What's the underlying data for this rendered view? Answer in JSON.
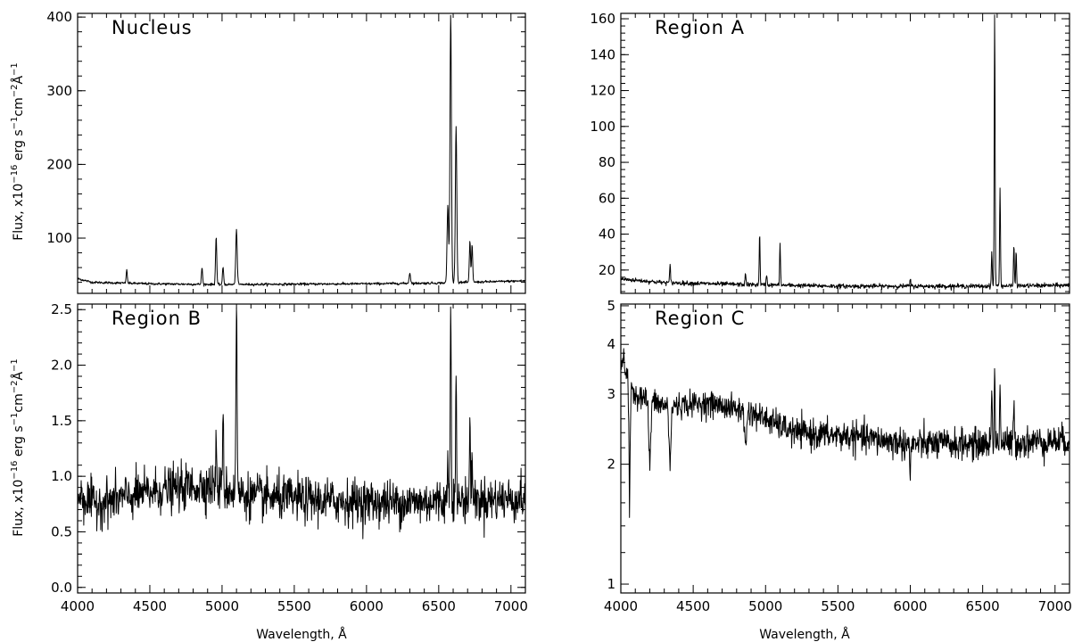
{
  "chart_data": [
    {
      "type": "line",
      "panel": "Nucleus",
      "title": "Nucleus",
      "xlabel": "",
      "ylabel": "Flux, x10^-16 erg s^-1 cm^-2 Å^-1",
      "xlim": [
        4000,
        7100
      ],
      "ylim": [
        25,
        405
      ],
      "xticks": [
        4000,
        4500,
        5000,
        5500,
        6000,
        6500,
        7000
      ],
      "yticks": [
        100,
        200,
        300,
        400
      ],
      "show_xtick_labels": false,
      "continuum": [
        [
          4000,
          45
        ],
        [
          4100,
          40
        ],
        [
          4500,
          38
        ],
        [
          5000,
          37
        ],
        [
          6000,
          38
        ],
        [
          6500,
          39
        ],
        [
          7100,
          42
        ]
      ],
      "lines": [
        {
          "x": 4340,
          "y": 56,
          "w": 4
        },
        {
          "x": 4861,
          "y": 60,
          "w": 4
        },
        {
          "x": 4959,
          "y": 102,
          "w": 4
        },
        {
          "x": 5007,
          "y": 60,
          "w": 4
        },
        {
          "x": 5100,
          "y": 112,
          "w": 5
        },
        {
          "x": 6300,
          "y": 52,
          "w": 5
        },
        {
          "x": 6563,
          "y": 145,
          "w": 5
        },
        {
          "x": 6583,
          "y": 405,
          "w": 5
        },
        {
          "x": 6620,
          "y": 252,
          "w": 5
        },
        {
          "x": 6716,
          "y": 96,
          "w": 4
        },
        {
          "x": 6731,
          "y": 92,
          "w": 4
        }
      ],
      "noise": 0.8,
      "series": [
        {
          "values": []
        }
      ]
    },
    {
      "type": "line",
      "panel": "Region A",
      "title": "Region A",
      "xlabel": "",
      "ylabel": "",
      "xlim": [
        4000,
        7100
      ],
      "ylim": [
        7,
        163
      ],
      "xticks": [
        4000,
        4500,
        5000,
        5500,
        6000,
        6500,
        7000
      ],
      "yticks": [
        20,
        40,
        60,
        80,
        100,
        120,
        140,
        160
      ],
      "show_xtick_labels": false,
      "continuum": [
        [
          4000,
          15
        ],
        [
          4300,
          13
        ],
        [
          4800,
          12
        ],
        [
          5500,
          11
        ],
        [
          6500,
          11
        ],
        [
          7100,
          11.5
        ]
      ],
      "lines": [
        {
          "x": 4340,
          "y": 23,
          "w": 3
        },
        {
          "x": 4861,
          "y": 18,
          "w": 3
        },
        {
          "x": 4959,
          "y": 40,
          "w": 3
        },
        {
          "x": 5007,
          "y": 18,
          "w": 3
        },
        {
          "x": 5100,
          "y": 35,
          "w": 3
        },
        {
          "x": 6000,
          "y": 15,
          "w": 3
        },
        {
          "x": 6563,
          "y": 30,
          "w": 3
        },
        {
          "x": 6583,
          "y": 163,
          "w": 3
        },
        {
          "x": 6620,
          "y": 67,
          "w": 3
        },
        {
          "x": 6716,
          "y": 34,
          "w": 3
        },
        {
          "x": 6731,
          "y": 30,
          "w": 3
        }
      ],
      "noise": 0.6,
      "series": [
        {
          "values": []
        }
      ]
    },
    {
      "type": "line",
      "panel": "Region B",
      "title": "Region B",
      "xlabel": "Wavelength, Å",
      "ylabel": "Flux, x10^-16 erg s^-1 cm^-2 Å^-1",
      "xlim": [
        4000,
        7100
      ],
      "ylim": [
        -0.05,
        2.55
      ],
      "xticks": [
        4000,
        4500,
        5000,
        5500,
        6000,
        6500,
        7000
      ],
      "yticks": [
        0.0,
        0.5,
        1.0,
        1.5,
        2.0,
        2.5
      ],
      "ytick_labels": [
        "0.0",
        "0.5",
        "1.0",
        "1.5",
        "2.0",
        "2.5"
      ],
      "show_xtick_labels": true,
      "continuum": [
        [
          4000,
          0.85
        ],
        [
          4100,
          0.75
        ],
        [
          4300,
          0.8
        ],
        [
          4600,
          0.88
        ],
        [
          4900,
          0.92
        ],
        [
          5200,
          0.82
        ],
        [
          5700,
          0.78
        ],
        [
          6200,
          0.76
        ],
        [
          6600,
          0.78
        ],
        [
          7100,
          0.8
        ]
      ],
      "lines": [
        {
          "x": 4959,
          "y": 1.35,
          "w": 3
        },
        {
          "x": 5007,
          "y": 1.68,
          "w": 3
        },
        {
          "x": 5100,
          "y": 2.55,
          "w": 4
        },
        {
          "x": 6563,
          "y": 1.2,
          "w": 3
        },
        {
          "x": 6583,
          "y": 2.55,
          "w": 4
        },
        {
          "x": 6620,
          "y": 1.93,
          "w": 3
        },
        {
          "x": 6716,
          "y": 1.55,
          "w": 3
        },
        {
          "x": 6731,
          "y": 1.25,
          "w": 3
        }
      ],
      "noise": 0.1,
      "series": [
        {
          "values": []
        }
      ]
    },
    {
      "type": "line",
      "panel": "Region C",
      "title": "Region C",
      "xlabel": "Wavelength, Å",
      "ylabel": "",
      "xlim": [
        4000,
        7100
      ],
      "ylim": [
        0.95,
        5.05
      ],
      "yscale": "log",
      "xticks": [
        4000,
        4500,
        5000,
        5500,
        6000,
        6500,
        7000
      ],
      "yticks": [
        1,
        2,
        3,
        4,
        5
      ],
      "show_xtick_labels": true,
      "continuum": [
        [
          4000,
          3.6
        ],
        [
          4100,
          3.0
        ],
        [
          4300,
          2.8
        ],
        [
          4600,
          2.85
        ],
        [
          4900,
          2.7
        ],
        [
          5200,
          2.4
        ],
        [
          5600,
          2.35
        ],
        [
          6000,
          2.25
        ],
        [
          6500,
          2.25
        ],
        [
          7100,
          2.3
        ]
      ],
      "lines": [
        {
          "x": 4020,
          "y": 3.9,
          "w": 3
        },
        {
          "x": 6563,
          "y": 3.1,
          "w": 3
        },
        {
          "x": 6583,
          "y": 3.45,
          "w": 3
        },
        {
          "x": 6620,
          "y": 3.2,
          "w": 3
        },
        {
          "x": 6716,
          "y": 2.85,
          "w": 3
        }
      ],
      "absorptions": [
        {
          "x": 4060,
          "depth": 1.6,
          "w": 5
        },
        {
          "x": 4200,
          "depth": 0.9,
          "w": 7
        },
        {
          "x": 4340,
          "depth": 0.8,
          "w": 7
        },
        {
          "x": 4861,
          "depth": 0.5,
          "w": 7
        },
        {
          "x": 6000,
          "depth": 0.35,
          "w": 4
        }
      ],
      "noise": 0.1,
      "series": [
        {
          "values": []
        }
      ]
    }
  ],
  "labels": {
    "ylabel_main": "Flux, x10",
    "ylabel_exp1": "−16",
    "ylabel_mid": " erg s",
    "ylabel_exp2": "−1",
    "ylabel_mid2": "cm",
    "ylabel_exp3": "−2",
    "ylabel_unit": "Å",
    "ylabel_exp4": "−1",
    "xlabel": "Wavelength, Å"
  }
}
